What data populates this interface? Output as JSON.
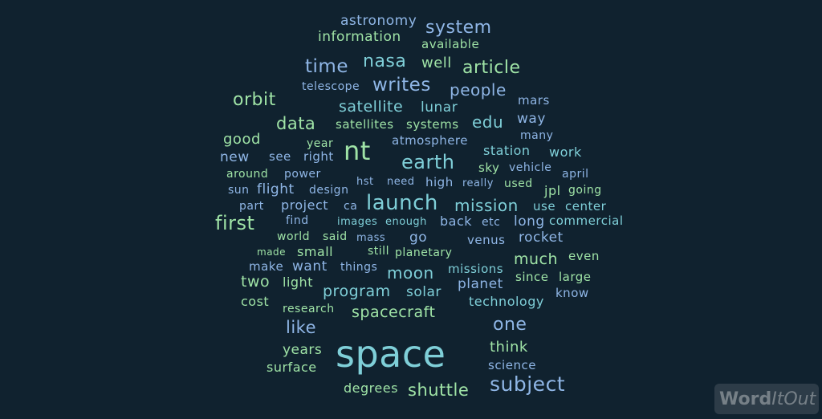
{
  "words": {
    "astronomy": "astronomy",
    "system": "system",
    "information": "information",
    "available": "available",
    "time": "time",
    "nasa": "nasa",
    "well": "well",
    "article": "article",
    "telescope": "telescope",
    "writes": "writes",
    "people": "people",
    "orbit": "orbit",
    "satellite": "satellite",
    "lunar": "lunar",
    "mars": "mars",
    "data": "data",
    "satellites": "satellites",
    "systems": "systems",
    "edu": "edu",
    "way": "way",
    "good": "good",
    "year": "year",
    "atmosphere": "atmosphere",
    "many": "many",
    "new": "new",
    "see": "see",
    "right": "right",
    "nt": "nt",
    "station": "station",
    "work": "work",
    "earth": "earth",
    "sky": "sky",
    "vehicle": "vehicle",
    "around": "around",
    "power": "power",
    "april": "april",
    "sun": "sun",
    "flight": "flight",
    "design": "design",
    "hst": "hst",
    "need": "need",
    "high": "high",
    "really": "really",
    "used": "used",
    "jpl": "jpl",
    "going": "going",
    "part": "part",
    "project": "project",
    "ca": "ca",
    "launch": "launch",
    "mission": "mission",
    "use": "use",
    "center": "center",
    "first": "first",
    "find": "find",
    "images": "images",
    "enough": "enough",
    "back": "back",
    "etc": "etc",
    "long": "long",
    "commercial": "commercial",
    "world": "world",
    "said": "said",
    "mass": "mass",
    "go": "go",
    "venus": "venus",
    "rocket": "rocket",
    "made": "made",
    "small": "small",
    "still": "still",
    "planetary": "planetary",
    "even": "even",
    "much": "much",
    "make": "make",
    "want": "want",
    "things": "things",
    "moon": "moon",
    "missions": "missions",
    "two": "two",
    "light": "light",
    "since": "since",
    "large": "large",
    "program": "program",
    "solar": "solar",
    "planet": "planet",
    "know": "know",
    "cost": "cost",
    "technology": "technology",
    "research": "research",
    "spacecraft": "spacecraft",
    "like": "like",
    "one": "one",
    "think": "think",
    "years": "years",
    "space": "space",
    "surface": "surface",
    "science": "science",
    "degrees": "degrees",
    "shuttle": "shuttle",
    "subject": "subject"
  },
  "logo": {
    "word": "Word",
    "it": "It",
    "out": "Out"
  },
  "colors": {
    "background": "#10222f",
    "green": "#9fe3a6",
    "blue": "#8fb6e6",
    "teal": "#7fcfd8"
  }
}
